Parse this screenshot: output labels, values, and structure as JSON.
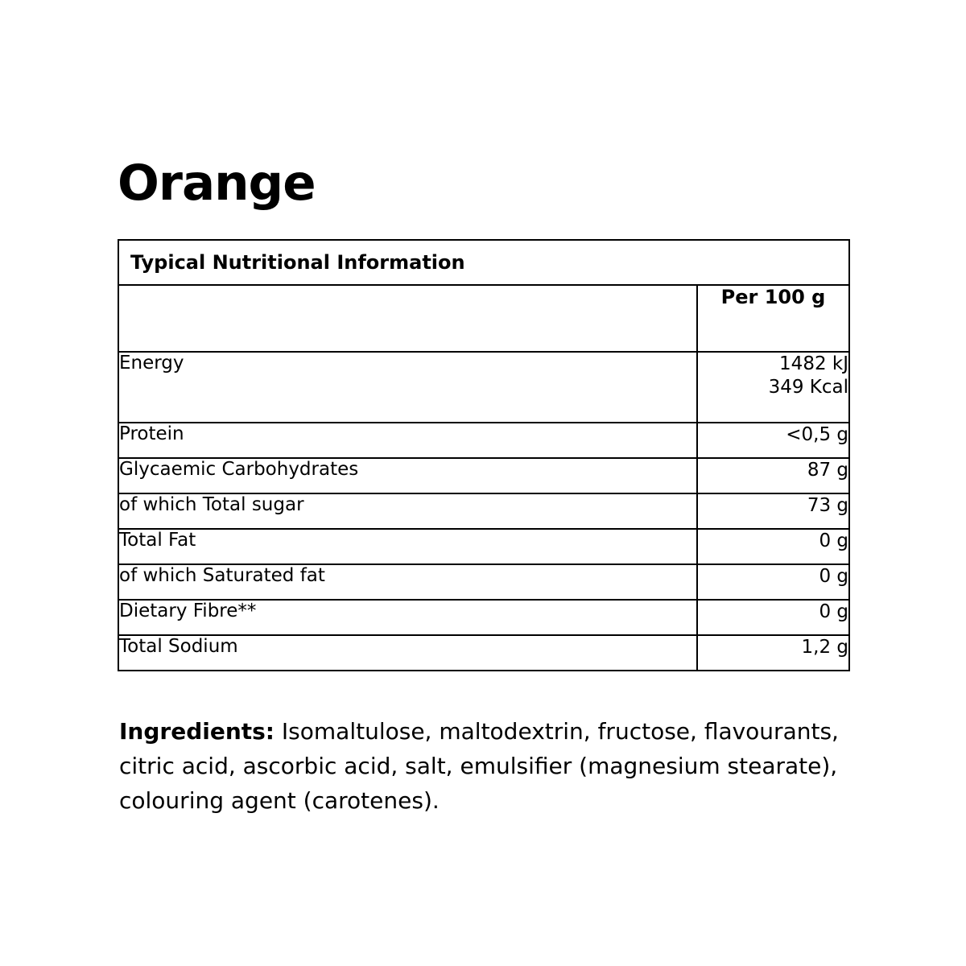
{
  "page": {
    "title": "Orange"
  },
  "nutrition_table": {
    "header": "Typical Nutritional Information",
    "column_header": "Per 100 g",
    "rows": [
      {
        "label": "Energy",
        "value": "1482 kJ\n349 Kcal"
      },
      {
        "label": "Protein",
        "value": "<0,5 g"
      },
      {
        "label": "Glycaemic Carbohydrates",
        "value": "87 g"
      },
      {
        "label": "of which Total sugar",
        "value": "73 g"
      },
      {
        "label": "Total Fat",
        "value": "0 g"
      },
      {
        "label": "of which Saturated fat",
        "value": "0 g"
      },
      {
        "label": "Dietary Fibre**",
        "value": "0 g"
      },
      {
        "label": "Total Sodium",
        "value": "1,2 g"
      }
    ]
  },
  "ingredients": {
    "label": "Ingredients:",
    "lines": [
      "Isomaltulose, maltodextrin, fructose, flavourants,",
      "citric acid, ascorbic acid, salt, emulsifier (magnesium stearate),",
      "colouring agent (carotenes)."
    ]
  }
}
